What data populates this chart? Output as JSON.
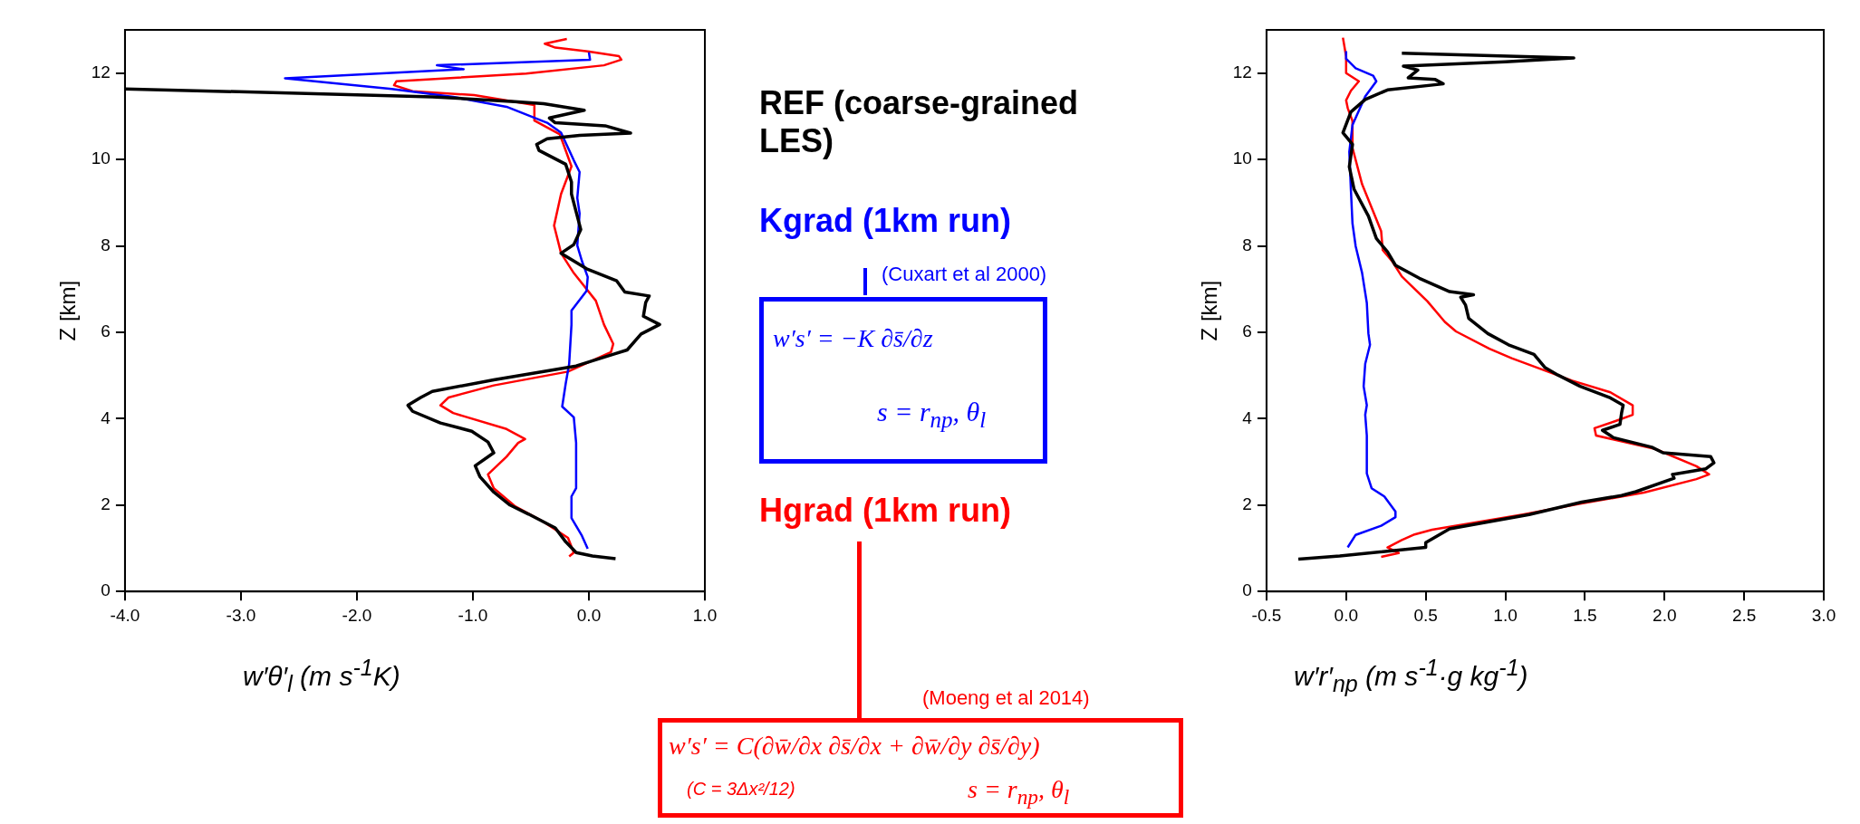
{
  "chart_data": [
    {
      "type": "line",
      "xlabel": "w′θ′$_{l}$   (m s$^{-1}$K)",
      "ylabel": "Z [km]",
      "xlim": [
        -4,
        1
      ],
      "ylim": [
        0,
        13
      ],
      "xticks": [
        {
          "value": -4,
          "label": "-4.0"
        },
        {
          "value": -3,
          "label": "-3.0"
        },
        {
          "value": -2,
          "label": "-2.0"
        },
        {
          "value": -1,
          "label": "-1.0"
        },
        {
          "value": 0,
          "label": "0.0"
        },
        {
          "value": 1,
          "label": "1.0"
        }
      ],
      "yticks": [
        0,
        2,
        4,
        6,
        8,
        10,
        12
      ],
      "grid": false,
      "legend": "right",
      "annotations": [
        "(Cuxart et al 2000)",
        "w′s′ = −K ∂s̄/∂z",
        "s = r$_{np}$, θ$_{l}$",
        "(Moeng et al 2014)",
        "w′s′ = C(∂w̄/∂x ∂s̄/∂x + ∂w̄/∂y ∂s̄/∂y)",
        "(C = 3Δx²/12)",
        "s = r$_{np}$, θ$_{l}$"
      ],
      "series": [
        {
          "name": "REF (coarse-grained LES)",
          "color": "#000000",
          "x": [
            0.23,
            0.03,
            -0.11,
            -0.2,
            -0.29,
            -0.52,
            -0.68,
            -0.82,
            -0.94,
            -0.98,
            -0.82,
            -0.87,
            -1.01,
            -1.28,
            -1.52,
            -1.56,
            -1.45,
            -1.35,
            -0.82,
            -0.11,
            0.22,
            0.33,
            0.45,
            0.61,
            0.47,
            0.49,
            0.52,
            0.31,
            0.24,
            -0.02,
            -0.24,
            -0.13,
            -0.07,
            -0.11,
            -0.15,
            -0.15,
            -0.2,
            -0.43,
            -0.45,
            -0.36,
            -0.08,
            0.36,
            0.14,
            -0.29,
            -0.34,
            -0.04,
            -0.39,
            -0.64,
            -1.35,
            -2.58,
            -4.0
          ],
          "values": [
            0.76,
            0.82,
            0.9,
            1.15,
            1.47,
            1.79,
            2.0,
            2.3,
            2.66,
            2.91,
            3.21,
            3.46,
            3.71,
            3.9,
            4.17,
            4.31,
            4.49,
            4.63,
            4.9,
            5.22,
            5.5,
            5.59,
            5.96,
            6.18,
            6.37,
            6.69,
            6.84,
            6.93,
            7.19,
            7.47,
            7.83,
            8.03,
            8.38,
            8.79,
            9.2,
            9.48,
            9.89,
            10.21,
            10.35,
            10.48,
            10.56,
            10.61,
            10.78,
            10.85,
            10.96,
            11.14,
            11.29,
            11.34,
            11.45,
            11.54,
            11.63
          ]
        },
        {
          "name": "Kgrad (1km run)",
          "color": "#0000ff",
          "x": [
            -0.01,
            -0.06,
            -0.15,
            -0.15,
            -0.11,
            -0.11,
            -0.13,
            -0.23,
            -0.2,
            -0.17,
            -0.15,
            -0.15,
            -0.02,
            -0.01,
            -0.06,
            -0.1,
            -0.08,
            -0.1,
            -0.08,
            -0.13,
            -0.24,
            -0.36,
            -0.71,
            -1.17,
            -1.7,
            -2.62,
            -1.08,
            -1.31,
            0.01,
            0.0
          ],
          "values": [
            0.99,
            1.29,
            1.7,
            2.2,
            2.39,
            3.44,
            4.03,
            4.28,
            4.81,
            5.27,
            6.18,
            6.5,
            6.96,
            7.28,
            7.65,
            8.01,
            8.75,
            9.11,
            9.71,
            9.98,
            10.62,
            10.85,
            11.22,
            11.45,
            11.63,
            11.88,
            12.09,
            12.18,
            12.31,
            12.48
          ]
        },
        {
          "name": "Hgrad (1km run)",
          "color": "#ff0000",
          "x": [
            -0.17,
            -0.13,
            -0.18,
            -0.39,
            -0.64,
            -0.82,
            -0.87,
            -0.71,
            -0.61,
            -0.55,
            -0.71,
            -1.17,
            -1.28,
            -1.21,
            -0.82,
            -0.18,
            0.19,
            0.21,
            0.13,
            0.06,
            -0.13,
            -0.24,
            -0.3,
            -0.24,
            -0.15,
            -0.25,
            -0.47,
            -0.47,
            -0.99,
            -1.52,
            -1.68,
            -1.66,
            -0.54,
            0.13,
            0.28,
            0.26,
            -0.01,
            -0.29,
            -0.38,
            -0.19
          ],
          "values": [
            0.81,
            0.9,
            1.24,
            1.61,
            1.98,
            2.39,
            2.71,
            3.12,
            3.44,
            3.53,
            3.76,
            4.13,
            4.31,
            4.49,
            4.77,
            5.09,
            5.54,
            5.73,
            6.18,
            6.73,
            7.37,
            7.83,
            8.47,
            9.2,
            9.84,
            10.58,
            10.9,
            11.26,
            11.49,
            11.58,
            11.72,
            11.81,
            11.99,
            12.18,
            12.31,
            12.39,
            12.5,
            12.59,
            12.68,
            12.79
          ]
        }
      ]
    },
    {
      "type": "line",
      "xlabel": "w′r′$_{np}$   (m s$^{-1}$·g kg$^{-1}$)",
      "ylabel": "Z [km]",
      "xlim": [
        -0.5,
        3
      ],
      "ylim": [
        0,
        13
      ],
      "xticks": [
        -0.5,
        {
          "value": 0,
          "label": "0.0"
        },
        0.5,
        {
          "value": 1,
          "label": "1.0"
        },
        1.5,
        {
          "value": 2,
          "label": "2.0"
        },
        2.5,
        {
          "value": 3,
          "label": "3.0"
        }
      ],
      "yticks": [
        0,
        2,
        4,
        6,
        8,
        10,
        12
      ],
      "grid": false,
      "series": [
        {
          "color": "#000000",
          "x": [
            -0.3,
            -0.04,
            0.5,
            0.5,
            0.65,
            1.15,
            1.48,
            1.73,
            1.82,
            2.06,
            2.05,
            2.26,
            2.31,
            2.29,
            1.99,
            1.92,
            1.68,
            1.61,
            1.72,
            1.73,
            1.74,
            1.66,
            1.47,
            1.33,
            1.25,
            1.18,
            1.02,
            0.89,
            0.77,
            0.75,
            0.72,
            0.8,
            0.65,
            0.46,
            0.31,
            0.26,
            0.19,
            0.14,
            0.05,
            0.02,
            0.04,
            -0.02,
            0.03,
            0.12,
            0.26,
            0.61,
            0.56,
            0.39,
            0.45,
            0.36,
            1.0,
            1.43,
            0.35
          ],
          "values": [
            0.75,
            0.82,
            1.02,
            1.13,
            1.45,
            1.78,
            2.07,
            2.22,
            2.31,
            2.62,
            2.71,
            2.84,
            2.98,
            3.12,
            3.21,
            3.34,
            3.56,
            3.73,
            3.87,
            4.13,
            4.31,
            4.48,
            4.75,
            5.01,
            5.18,
            5.49,
            5.71,
            5.97,
            6.32,
            6.63,
            6.81,
            6.87,
            6.94,
            7.25,
            7.55,
            7.86,
            8.17,
            8.69,
            9.31,
            9.83,
            10.35,
            10.62,
            11.1,
            11.39,
            11.61,
            11.75,
            11.85,
            11.89,
            12.07,
            12.16,
            12.26,
            12.35,
            12.46
          ]
        },
        {
          "color": "#0000ff",
          "x": [
            0.01,
            0.06,
            0.22,
            0.31,
            0.31,
            0.24,
            0.16,
            0.13,
            0.13,
            0.12,
            0.13,
            0.11,
            0.12,
            0.15,
            0.14,
            0.13,
            0.1,
            0.06,
            0.04,
            0.03,
            0.02,
            0.04,
            0.12,
            0.19,
            0.17,
            0.06,
            0.0,
            0.0
          ],
          "values": [
            1.02,
            1.31,
            1.52,
            1.72,
            1.85,
            2.2,
            2.39,
            2.73,
            3.61,
            4.09,
            4.31,
            4.75,
            5.27,
            5.71,
            5.97,
            6.68,
            7.38,
            7.99,
            8.52,
            9.3,
            10.18,
            10.8,
            11.46,
            11.81,
            11.94,
            12.11,
            12.33,
            12.51
          ]
        },
        {
          "color": "#ff0000",
          "x": [
            0.22,
            0.33,
            0.26,
            0.35,
            0.43,
            0.54,
            1.11,
            1.47,
            1.87,
            2.2,
            2.28,
            2.2,
            1.94,
            1.57,
            1.56,
            1.68,
            1.8,
            1.8,
            1.66,
            1.42,
            1.04,
            0.9,
            0.69,
            0.62,
            0.51,
            0.35,
            0.29,
            0.23,
            0.22,
            0.1,
            0.04,
            0.04,
            0.01,
            0.0,
            0.03,
            0.08,
            0.0,
            0.0,
            -0.02
          ],
          "values": [
            0.8,
            0.89,
            1.02,
            1.19,
            1.32,
            1.43,
            1.78,
            2.03,
            2.29,
            2.6,
            2.71,
            2.9,
            3.3,
            3.61,
            3.78,
            3.93,
            4.09,
            4.31,
            4.61,
            4.88,
            5.4,
            5.62,
            6.02,
            6.24,
            6.72,
            7.29,
            7.64,
            7.9,
            8.34,
            9.43,
            10.27,
            10.89,
            11.19,
            11.37,
            11.59,
            11.81,
            12.0,
            12.38,
            12.82
          ]
        }
      ]
    }
  ]
}
